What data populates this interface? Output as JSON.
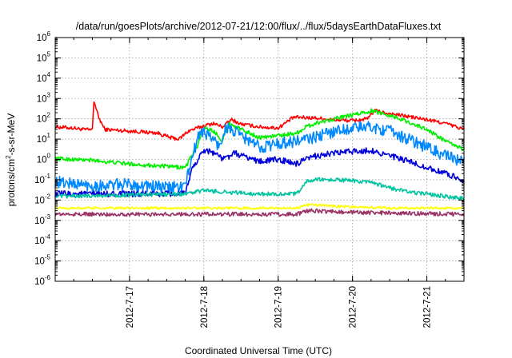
{
  "chart_data": {
    "type": "line",
    "title": "/data/run/goesPlots/archive/2012-07-21/12:00/flux/../flux/5daysEarthDataFluxes.txt",
    "xlabel": "Coordinated Universal Time (UTC)",
    "ylabel": {
      "prefix": "protons/cm",
      "sup": "2",
      "suffix": "-s-sr-MeV"
    },
    "yscale": "log",
    "ylim": [
      1e-06,
      1000000.0
    ],
    "ytick_exponents": [
      -6,
      -5,
      -4,
      -3,
      -2,
      -1,
      0,
      1,
      2,
      3,
      4,
      5,
      6
    ],
    "ytick_base": "10",
    "xlim": [
      "2012-07-16T00:00",
      "2012-07-21T12:00"
    ],
    "xtick_labels": [
      "2012-7-17",
      "2012-7-18",
      "2012-7-19",
      "2012-7-20",
      "2012-7-21"
    ],
    "xticks": [
      "2012-07-17T00:00",
      "2012-07-18T00:00",
      "2012-07-19T00:00",
      "2012-07-20T00:00",
      "2012-07-21T00:00"
    ],
    "grid": true,
    "series": [
      {
        "color": "#ff0000",
        "noise": 0.09,
        "points": [
          [
            "2012-07-16T00:00",
            40
          ],
          [
            "2012-07-16T06:00",
            35
          ],
          [
            "2012-07-16T09:00",
            30
          ],
          [
            "2012-07-16T12:00",
            28
          ],
          [
            "2012-07-16T12:30",
            800
          ],
          [
            "2012-07-16T14:00",
            120
          ],
          [
            "2012-07-16T16:00",
            30
          ],
          [
            "2012-07-17T00:00",
            25
          ],
          [
            "2012-07-17T09:00",
            20
          ],
          [
            "2012-07-17T13:00",
            12
          ],
          [
            "2012-07-17T16:00",
            10
          ],
          [
            "2012-07-17T19:00",
            25
          ],
          [
            "2012-07-17T23:00",
            40
          ],
          [
            "2012-07-18T03:00",
            60
          ],
          [
            "2012-07-18T06:00",
            40
          ],
          [
            "2012-07-18T09:00",
            90
          ],
          [
            "2012-07-18T12:00",
            55
          ],
          [
            "2012-07-18T18:00",
            40
          ],
          [
            "2012-07-19T00:00",
            35
          ],
          [
            "2012-07-19T05:00",
            120
          ],
          [
            "2012-07-19T12:00",
            110
          ],
          [
            "2012-07-19T18:00",
            90
          ],
          [
            "2012-07-20T00:00",
            80
          ],
          [
            "2012-07-20T05:00",
            100
          ],
          [
            "2012-07-20T07:00",
            250
          ],
          [
            "2012-07-20T12:00",
            180
          ],
          [
            "2012-07-20T18:00",
            130
          ],
          [
            "2012-07-21T00:00",
            90
          ],
          [
            "2012-07-21T06:00",
            60
          ],
          [
            "2012-07-21T12:00",
            30
          ]
        ]
      },
      {
        "color": "#00ee00",
        "noise": 0.1,
        "points": [
          [
            "2012-07-16T00:00",
            1.1
          ],
          [
            "2012-07-16T12:00",
            0.9
          ],
          [
            "2012-07-17T00:00",
            0.6
          ],
          [
            "2012-07-17T12:00",
            0.45
          ],
          [
            "2012-07-17T18:00",
            0.4
          ],
          [
            "2012-07-17T22:00",
            5
          ],
          [
            "2012-07-18T00:00",
            40
          ],
          [
            "2012-07-18T04:00",
            20
          ],
          [
            "2012-07-18T06:00",
            8
          ],
          [
            "2012-07-18T08:00",
            60
          ],
          [
            "2012-07-18T12:00",
            30
          ],
          [
            "2012-07-18T18:00",
            12
          ],
          [
            "2012-07-19T00:00",
            15
          ],
          [
            "2012-07-19T06:00",
            20
          ],
          [
            "2012-07-19T09:00",
            40
          ],
          [
            "2012-07-19T12:00",
            60
          ],
          [
            "2012-07-19T18:00",
            100
          ],
          [
            "2012-07-20T00:00",
            150
          ],
          [
            "2012-07-20T06:00",
            250
          ],
          [
            "2012-07-20T12:00",
            150
          ],
          [
            "2012-07-20T18:00",
            70
          ],
          [
            "2012-07-21T00:00",
            30
          ],
          [
            "2012-07-21T06:00",
            8
          ],
          [
            "2012-07-21T12:00",
            3
          ]
        ]
      },
      {
        "color": "#0088ff",
        "noise": 0.3,
        "points": [
          [
            "2012-07-16T00:00",
            0.08
          ],
          [
            "2012-07-16T12:00",
            0.05
          ],
          [
            "2012-07-17T00:00",
            0.06
          ],
          [
            "2012-07-17T12:00",
            0.04
          ],
          [
            "2012-07-17T18:00",
            0.05
          ],
          [
            "2012-07-17T20:00",
            1
          ],
          [
            "2012-07-17T23:00",
            30
          ],
          [
            "2012-07-18T03:00",
            10
          ],
          [
            "2012-07-18T05:00",
            4
          ],
          [
            "2012-07-18T07:00",
            40
          ],
          [
            "2012-07-18T12:00",
            15
          ],
          [
            "2012-07-18T18:00",
            4
          ],
          [
            "2012-07-19T00:00",
            6
          ],
          [
            "2012-07-19T06:00",
            8
          ],
          [
            "2012-07-19T12:00",
            12
          ],
          [
            "2012-07-19T18:00",
            25
          ],
          [
            "2012-07-20T00:00",
            35
          ],
          [
            "2012-07-20T06:00",
            40
          ],
          [
            "2012-07-20T12:00",
            25
          ],
          [
            "2012-07-20T18:00",
            10
          ],
          [
            "2012-07-21T00:00",
            4
          ],
          [
            "2012-07-21T06:00",
            1.5
          ],
          [
            "2012-07-21T12:00",
            0.7
          ]
        ]
      },
      {
        "color": "#0000dd",
        "noise": 0.15,
        "points": [
          [
            "2012-07-16T00:00",
            0.02
          ],
          [
            "2012-07-16T12:00",
            0.02
          ],
          [
            "2012-07-17T00:00",
            0.02
          ],
          [
            "2012-07-17T18:00",
            0.02
          ],
          [
            "2012-07-17T20:00",
            0.3
          ],
          [
            "2012-07-18T00:00",
            3
          ],
          [
            "2012-07-18T04:00",
            2
          ],
          [
            "2012-07-18T06:00",
            1
          ],
          [
            "2012-07-18T10:00",
            2
          ],
          [
            "2012-07-18T18:00",
            0.8
          ],
          [
            "2012-07-19T00:00",
            1
          ],
          [
            "2012-07-19T06:00",
            0.6
          ],
          [
            "2012-07-19T12:00",
            1.5
          ],
          [
            "2012-07-19T18:00",
            2
          ],
          [
            "2012-07-20T00:00",
            2.5
          ],
          [
            "2012-07-20T06:00",
            2.8
          ],
          [
            "2012-07-20T12:00",
            1.5
          ],
          [
            "2012-07-20T18:00",
            0.8
          ],
          [
            "2012-07-21T00:00",
            0.4
          ],
          [
            "2012-07-21T06:00",
            0.2
          ],
          [
            "2012-07-21T12:00",
            0.1
          ]
        ]
      },
      {
        "color": "#00c4a0",
        "noise": 0.1,
        "points": [
          [
            "2012-07-16T00:00",
            0.015
          ],
          [
            "2012-07-17T18:00",
            0.02
          ],
          [
            "2012-07-18T00:00",
            0.03
          ],
          [
            "2012-07-18T06:00",
            0.025
          ],
          [
            "2012-07-18T18:00",
            0.02
          ],
          [
            "2012-07-19T06:00",
            0.02
          ],
          [
            "2012-07-19T09:00",
            0.08
          ],
          [
            "2012-07-19T12:00",
            0.1
          ],
          [
            "2012-07-19T18:00",
            0.1
          ],
          [
            "2012-07-20T00:00",
            0.09
          ],
          [
            "2012-07-20T06:00",
            0.07
          ],
          [
            "2012-07-20T12:00",
            0.04
          ],
          [
            "2012-07-20T18:00",
            0.025
          ],
          [
            "2012-07-21T00:00",
            0.02
          ],
          [
            "2012-07-21T06:00",
            0.015
          ],
          [
            "2012-07-21T12:00",
            0.012
          ]
        ]
      },
      {
        "color": "#ffff00",
        "noise": 0.06,
        "points": [
          [
            "2012-07-16T00:00",
            0.004
          ],
          [
            "2012-07-17T12:00",
            0.004
          ],
          [
            "2012-07-18T12:00",
            0.004
          ],
          [
            "2012-07-19T06:00",
            0.004
          ],
          [
            "2012-07-19T10:00",
            0.006
          ],
          [
            "2012-07-19T18:00",
            0.005
          ],
          [
            "2012-07-20T12:00",
            0.004
          ],
          [
            "2012-07-21T12:00",
            0.004
          ]
        ]
      },
      {
        "color": "#993366",
        "noise": 0.1,
        "points": [
          [
            "2012-07-16T00:00",
            0.002
          ],
          [
            "2012-07-17T12:00",
            0.002
          ],
          [
            "2012-07-18T12:00",
            0.002
          ],
          [
            "2012-07-19T06:00",
            0.002
          ],
          [
            "2012-07-19T10:00",
            0.003
          ],
          [
            "2012-07-20T00:00",
            0.0025
          ],
          [
            "2012-07-21T12:00",
            0.002
          ]
        ]
      }
    ]
  }
}
